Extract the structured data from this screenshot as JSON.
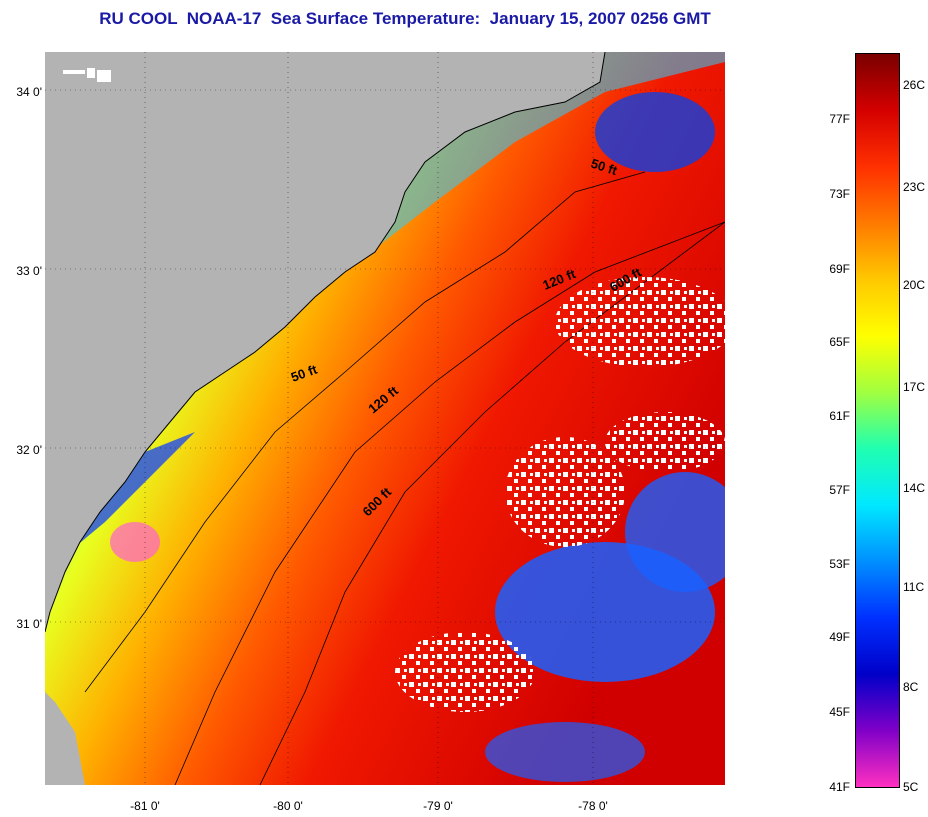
{
  "title": "RU COOL  NOAA-17  Sea Surface Temperature:  January 15, 2007 0256 GMT",
  "map": {
    "lat_labels": [
      "34 0'",
      "33 0'",
      "32 0'",
      "31 0'"
    ],
    "lon_labels": [
      "-81 0'",
      "-80 0'",
      "-79 0'",
      "-78 0'"
    ],
    "isobaths": [
      {
        "label": "50 ft"
      },
      {
        "label": "50 ft"
      },
      {
        "label": "120 ft"
      },
      {
        "label": "120 ft"
      },
      {
        "label": "600 ft"
      },
      {
        "label": "600 ft"
      }
    ],
    "colors": {
      "land": "#b3b3b3",
      "cloud": "#ffffff",
      "coast": "#000000"
    }
  },
  "colorbar": {
    "fahrenheit": [
      "77F",
      "73F",
      "69F",
      "65F",
      "61F",
      "57F",
      "53F",
      "49F",
      "45F",
      "41F"
    ],
    "celsius": [
      "26C",
      "23C",
      "20C",
      "17C",
      "14C",
      "11C",
      "8C",
      "5C"
    ],
    "gradient_colors": [
      "#7a0000",
      "#d40000",
      "#ff3000",
      "#ff7a00",
      "#ffc800",
      "#ffff00",
      "#a0ff40",
      "#20ffb0",
      "#00e8ff",
      "#0090ff",
      "#0030ff",
      "#0000c8",
      "#8000c8",
      "#ff30c0"
    ]
  }
}
